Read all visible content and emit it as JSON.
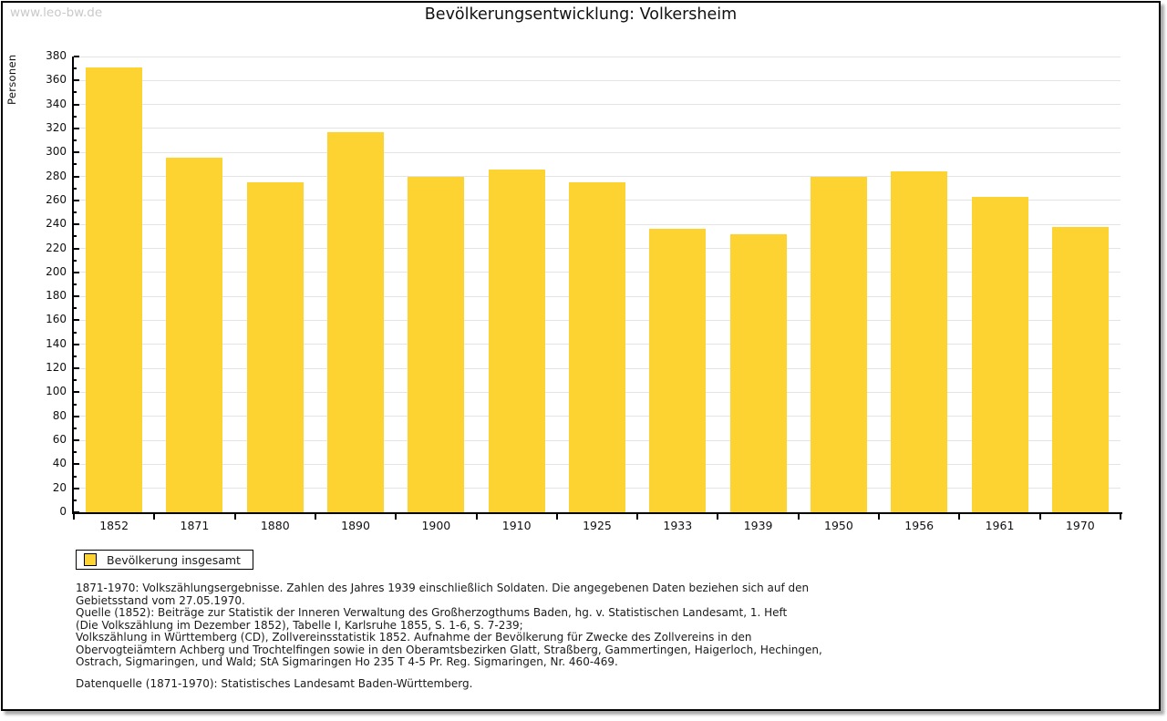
{
  "watermark": "www.leo-bw.de",
  "chart_data": {
    "type": "bar",
    "title": "Bevölkerungsentwicklung: Volkersheim",
    "xlabel": "",
    "ylabel": "Personen",
    "categories": [
      "1852",
      "1871",
      "1880",
      "1890",
      "1900",
      "1910",
      "1925",
      "1933",
      "1939",
      "1950",
      "1956",
      "1961",
      "1970"
    ],
    "values": [
      371,
      296,
      275,
      317,
      280,
      286,
      275,
      236,
      232,
      280,
      284,
      263,
      238
    ],
    "ylim": [
      0,
      380
    ],
    "ytick_step": 20,
    "minor_tick_step": 10,
    "grid": true,
    "legend_entries": [
      "Bevölkerung insgesamt"
    ],
    "legend_position": "bottom-left"
  },
  "legend": {
    "label": "Bevölkerung insgesamt"
  },
  "footnotes": {
    "lines": [
      "1871-1970: Volkszählungsergebnisse. Zahlen des Jahres 1939 einschließlich Soldaten. Die angegebenen Daten beziehen sich auf den",
      "Gebietsstand vom 27.05.1970.",
      "Quelle (1852): Beiträge zur Statistik der Inneren Verwaltung des Großherzogthums Baden, hg. v. Statistischen Landesamt, 1. Heft",
      "(Die Volkszählung im Dezember 1852), Tabelle I, Karlsruhe 1855, S. 1-6, S. 7-239;",
      "Volkszählung in Württemberg (CD), Zollvereinsstatistik 1852. Aufnahme der Bevölkerung für Zwecke des Zollvereins in den",
      "Obervogteiämtern Achberg und Trochtelfingen sowie in den Oberamtsbezirken Glatt, Straßberg, Gammertingen, Haigerloch, Hechingen,",
      "Ostrach, Sigmaringen, und Wald; StA Sigmaringen Ho 235 T 4-5 Pr. Reg. Sigmaringen, Nr. 460-469."
    ]
  },
  "datasource": "Datenquelle (1871-1970): Statistisches Landesamt Baden-Württemberg.",
  "colors": {
    "bar": "#fcd331",
    "grid": "#e4e4e4",
    "axis": "#000000",
    "watermark": "#c9c9c9",
    "text": "#1a1a1a"
  }
}
